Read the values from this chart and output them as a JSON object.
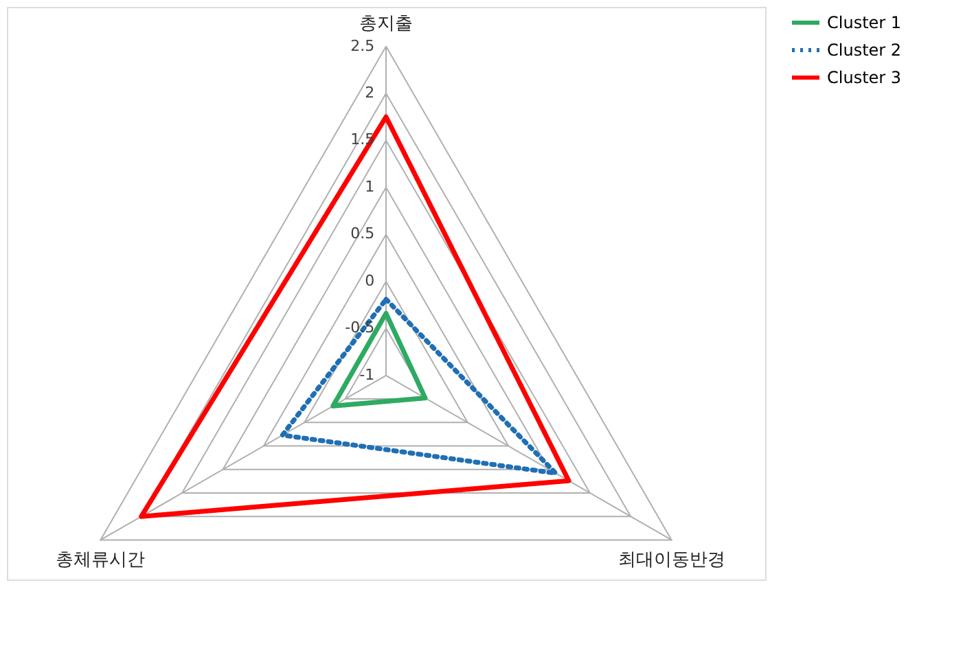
{
  "chart_data": {
    "type": "radar",
    "categories": [
      "총지출",
      "최대이동반경",
      "총체류시간"
    ],
    "ylim": [
      -1,
      2.5
    ],
    "yticks": [
      -1,
      -0.5,
      0,
      0.5,
      1,
      1.5,
      2,
      2.5
    ],
    "grid": true,
    "legend": "right",
    "series": [
      {
        "name": "Cluster 1",
        "color": "#2eaa62",
        "line_style": "solid",
        "values": [
          -0.34,
          -0.52,
          -0.35
        ]
      },
      {
        "name": "Cluster 2",
        "color": "#1f6fb4",
        "line_style": "dotted",
        "values": [
          -0.19,
          1.08,
          0.27
        ]
      },
      {
        "name": "Cluster 3",
        "color": "#ff0000",
        "line_style": "solid",
        "values": [
          1.75,
          1.24,
          2.0
        ]
      }
    ]
  }
}
